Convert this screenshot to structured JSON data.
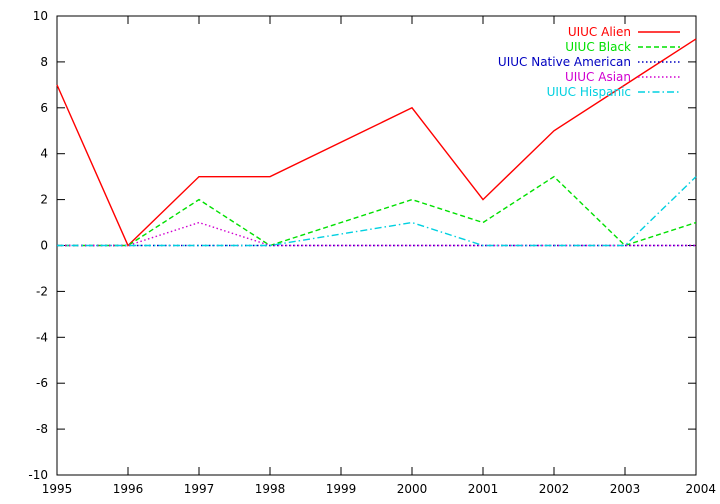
{
  "chart_data": {
    "type": "line",
    "title": "",
    "xlabel": "",
    "ylabel": "",
    "x": [
      1995,
      1996,
      1997,
      1998,
      1999,
      2000,
      2001,
      2002,
      2003,
      2004
    ],
    "xlim": [
      1995,
      2004
    ],
    "ylim": [
      -10,
      10
    ],
    "xticks": [
      "1995",
      "1996",
      "1997",
      "1998",
      "1999",
      "2000",
      "2001",
      "2002",
      "2003",
      "2004"
    ],
    "yticks": [
      "-10",
      "-8",
      "-6",
      "-4",
      "-2",
      "0",
      "2",
      "4",
      "6",
      "8",
      "10"
    ],
    "grid": false,
    "legend_position": "top-right",
    "series": [
      {
        "name": "UIUC Alien",
        "color": "#ff0000",
        "dash": "solid",
        "values": [
          7,
          0,
          3,
          3,
          null,
          6,
          2,
          5,
          null,
          9
        ]
      },
      {
        "name": "UIUC Black",
        "color": "#00e000",
        "dash": "dashed",
        "values": [
          0,
          0,
          2,
          0,
          null,
          2,
          1,
          3,
          0,
          1
        ]
      },
      {
        "name": "UIUC Native American",
        "color": "#0000c0",
        "dash": "dotted",
        "values": [
          0,
          0,
          0,
          0,
          null,
          0,
          0,
          0,
          0,
          0
        ]
      },
      {
        "name": "UIUC Asian",
        "color": "#d000d0",
        "dash": "dotted",
        "values": [
          0,
          0,
          1,
          0,
          null,
          0,
          0,
          0,
          0,
          0
        ]
      },
      {
        "name": "UIUC Hispanic",
        "color": "#00d0e0",
        "dash": "dashdot",
        "values": [
          0,
          0,
          0,
          0,
          null,
          1,
          0,
          0,
          0,
          3
        ]
      }
    ]
  }
}
